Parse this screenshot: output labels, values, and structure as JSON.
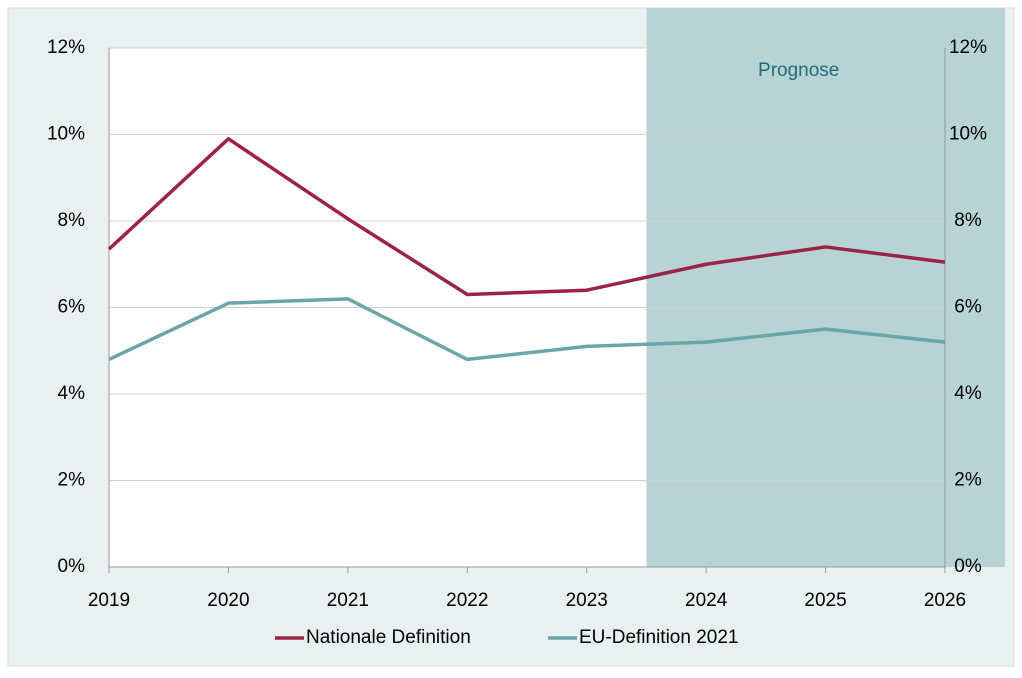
{
  "chart_data": {
    "type": "line",
    "x": [
      2019,
      2020,
      2021,
      2022,
      2023,
      2024,
      2025,
      2026
    ],
    "xlim": [
      2019,
      2026
    ],
    "xticks": [
      2019,
      2020,
      2021,
      2022,
      2023,
      2024,
      2025,
      2026
    ],
    "series": [
      {
        "name": "Nationale Definition",
        "color": "#9b2346",
        "values": [
          7.35,
          9.9,
          8.05,
          6.3,
          6.4,
          7.0,
          7.4,
          7.05
        ]
      },
      {
        "name": "EU-Definition 2021",
        "color": "#6aa5a8",
        "values": [
          4.8,
          6.1,
          6.2,
          4.8,
          5.1,
          5.2,
          5.5,
          5.2
        ]
      }
    ],
    "ylim": [
      0,
      12
    ],
    "yticks": [
      {
        "value": 0,
        "label": "0%"
      },
      {
        "value": 2,
        "label": "2%"
      },
      {
        "value": 4,
        "label": "4%"
      },
      {
        "value": 6,
        "label": "6%"
      },
      {
        "value": 8,
        "label": "8%"
      },
      {
        "value": 10,
        "label": "10%"
      },
      {
        "value": 12,
        "label": "12%"
      }
    ],
    "y2lim": [
      0,
      12
    ],
    "y2ticks": [
      {
        "value": 0,
        "label": "0%"
      },
      {
        "value": 2,
        "label": "2%"
      },
      {
        "value": 4,
        "label": "4%"
      },
      {
        "value": 6,
        "label": "6%"
      },
      {
        "value": 8,
        "label": "8%"
      },
      {
        "value": 10,
        "label": "10%"
      },
      {
        "value": 12,
        "label": "12%"
      }
    ],
    "forecast": {
      "label": "Prognose",
      "from": 2023.5
    },
    "grid": true,
    "legend": "bottom"
  }
}
